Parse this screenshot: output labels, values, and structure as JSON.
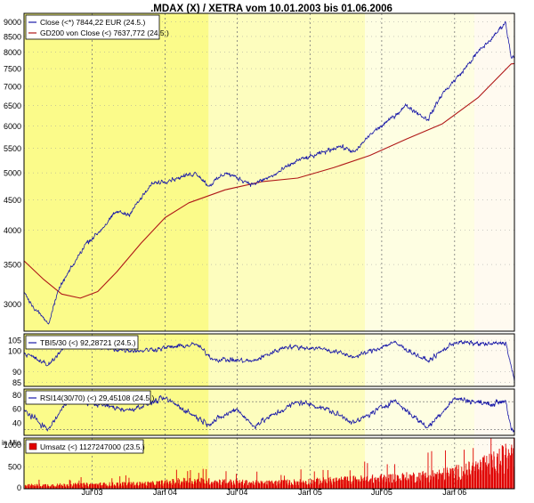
{
  "title": ".MDAX (X) / XETRA vom 10.01.2003 bis 01.06.2006",
  "colors": {
    "price": "#1a1aa8",
    "ma": "#b01818",
    "volume": "#e00000",
    "band_strong": "#fbfb8a",
    "band_mid": "#fdfdbe",
    "band_light": "#fefee2",
    "band_pale": "#fffaf0"
  },
  "chart_data": [
    {
      "type": "line",
      "panel": "price",
      "yscale": "log",
      "ylim": [
        2700,
        9300
      ],
      "yticks": [
        3000,
        3500,
        4000,
        4500,
        5000,
        5500,
        6000,
        6500,
        7000,
        7500,
        8000,
        8500,
        9000
      ],
      "xlim": [
        "2003-01-10",
        "2006-06-01"
      ],
      "xticks": [
        {
          "date": "2003-07-01",
          "label": "Jul 03"
        },
        {
          "date": "2004-01-01",
          "label": "Jan 04"
        },
        {
          "date": "2004-07-01",
          "label": "Jul 04"
        },
        {
          "date": "2005-01-01",
          "label": "Jan 05"
        },
        {
          "date": "2005-07-01",
          "label": "Jul 05"
        },
        {
          "date": "2006-01-01",
          "label": "Jan 06"
        }
      ],
      "legend": [
        {
          "label": "Close (<*) 7844,22 EUR (24.5.)",
          "series": "close"
        },
        {
          "label": "GD200 von Close (<) 7637,772 (24.5.)",
          "series": "gd200"
        }
      ],
      "series": [
        {
          "id": "close",
          "points": [
            [
              "2003-01-10",
              3150
            ],
            [
              "2003-02-01",
              2980
            ],
            [
              "2003-03-12",
              2780
            ],
            [
              "2003-04-10",
              3200
            ],
            [
              "2003-05-15",
              3500
            ],
            [
              "2003-06-15",
              3800
            ],
            [
              "2003-07-15",
              3950
            ],
            [
              "2003-09-01",
              4300
            ],
            [
              "2003-10-01",
              4250
            ],
            [
              "2003-12-01",
              4800
            ],
            [
              "2004-02-01",
              4900
            ],
            [
              "2004-03-20",
              5000
            ],
            [
              "2004-04-20",
              4750
            ],
            [
              "2004-06-01",
              5000
            ],
            [
              "2004-08-10",
              4780
            ],
            [
              "2004-10-01",
              4950
            ],
            [
              "2004-12-01",
              5250
            ],
            [
              "2005-01-15",
              5350
            ],
            [
              "2005-03-15",
              5550
            ],
            [
              "2005-04-25",
              5420
            ],
            [
              "2005-06-01",
              5800
            ],
            [
              "2005-07-15",
              6100
            ],
            [
              "2005-09-01",
              6500
            ],
            [
              "2005-10-25",
              6150
            ],
            [
              "2005-12-01",
              6800
            ],
            [
              "2006-01-20",
              7400
            ],
            [
              "2006-03-01",
              8000
            ],
            [
              "2006-04-10",
              8500
            ],
            [
              "2006-05-09",
              9000
            ],
            [
              "2006-05-24",
              7844.22
            ],
            [
              "2006-06-01",
              7900
            ]
          ]
        },
        {
          "id": "gd200",
          "points": [
            [
              "2003-01-10",
              3550
            ],
            [
              "2003-03-01",
              3300
            ],
            [
              "2003-04-15",
              3120
            ],
            [
              "2003-06-01",
              3070
            ],
            [
              "2003-07-15",
              3150
            ],
            [
              "2003-09-01",
              3400
            ],
            [
              "2003-11-01",
              3800
            ],
            [
              "2004-01-01",
              4200
            ],
            [
              "2004-03-01",
              4450
            ],
            [
              "2004-06-01",
              4680
            ],
            [
              "2004-09-01",
              4830
            ],
            [
              "2004-12-01",
              4900
            ],
            [
              "2005-03-01",
              5100
            ],
            [
              "2005-06-01",
              5350
            ],
            [
              "2005-09-01",
              5700
            ],
            [
              "2005-12-01",
              6050
            ],
            [
              "2006-03-01",
              6700
            ],
            [
              "2006-05-24",
              7637.772
            ],
            [
              "2006-06-01",
              7650
            ]
          ]
        }
      ]
    },
    {
      "type": "line",
      "panel": "tbi",
      "ylim": [
        83,
        108
      ],
      "yticks": [
        85,
        90,
        100,
        105
      ],
      "legend": [
        {
          "label": "TBI5/30 (<) 92,28721 (24.5.)",
          "series": "tbi"
        }
      ],
      "series": [
        {
          "id": "tbi",
          "points": [
            [
              "2003-01-10",
              99
            ],
            [
              "2003-03-12",
              93
            ],
            [
              "2003-05-01",
              104
            ],
            [
              "2003-08-01",
              101
            ],
            [
              "2003-11-01",
              100
            ],
            [
              "2004-03-20",
              103
            ],
            [
              "2004-05-01",
              96
            ],
            [
              "2004-08-10",
              95
            ],
            [
              "2004-11-01",
              102
            ],
            [
              "2005-02-01",
              101
            ],
            [
              "2005-04-25",
              97
            ],
            [
              "2005-08-01",
              104
            ],
            [
              "2005-10-25",
              95
            ],
            [
              "2006-01-01",
              104
            ],
            [
              "2006-04-01",
              103
            ],
            [
              "2006-05-10",
              104
            ],
            [
              "2006-05-24",
              92.28721
            ],
            [
              "2006-06-01",
              85
            ]
          ]
        }
      ]
    },
    {
      "type": "line",
      "panel": "rsi",
      "ylim": [
        22,
        88
      ],
      "yticks": [
        40,
        60,
        80
      ],
      "guides": [
        30,
        70
      ],
      "legend": [
        {
          "label": "RSI14(30/70) (<) 29,45108 (24.5.)",
          "series": "rsi"
        }
      ],
      "series": [
        {
          "id": "rsi",
          "points": [
            [
              "2003-01-10",
              58
            ],
            [
              "2003-03-12",
              30
            ],
            [
              "2003-05-01",
              72
            ],
            [
              "2003-07-01",
              68
            ],
            [
              "2003-10-01",
              58
            ],
            [
              "2004-01-01",
              75
            ],
            [
              "2004-04-20",
              38
            ],
            [
              "2004-07-01",
              60
            ],
            [
              "2004-08-10",
              35
            ],
            [
              "2004-12-01",
              70
            ],
            [
              "2005-02-01",
              62
            ],
            [
              "2005-04-25",
              40
            ],
            [
              "2005-08-01",
              72
            ],
            [
              "2005-10-25",
              33
            ],
            [
              "2006-01-01",
              75
            ],
            [
              "2006-04-01",
              66
            ],
            [
              "2006-05-10",
              72
            ],
            [
              "2006-05-24",
              29.45108
            ],
            [
              "2006-06-01",
              25
            ]
          ]
        }
      ]
    },
    {
      "type": "bar",
      "panel": "volume",
      "unit": "in Mio",
      "ylim": [
        0,
        1150
      ],
      "yticks": [
        0,
        500,
        1000
      ],
      "legend": [
        {
          "label": "Umsatz (<) 1127247000 (23.5.)",
          "series": "umsatz"
        }
      ],
      "series": [
        {
          "id": "umsatz",
          "points": [
            [
              "2003-01-10",
              80
            ],
            [
              "2003-06-01",
              100
            ],
            [
              "2003-12-01",
              130
            ],
            [
              "2004-03-01",
              200
            ],
            [
              "2004-09-01",
              140
            ],
            [
              "2005-01-01",
              180
            ],
            [
              "2005-06-01",
              240
            ],
            [
              "2005-09-01",
              280
            ],
            [
              "2005-12-01",
              350
            ],
            [
              "2006-02-01",
              450
            ],
            [
              "2006-04-01",
              600
            ],
            [
              "2006-05-15",
              800
            ],
            [
              "2006-05-23",
              1127.247
            ],
            [
              "2006-06-01",
              900
            ]
          ]
        }
      ]
    }
  ]
}
